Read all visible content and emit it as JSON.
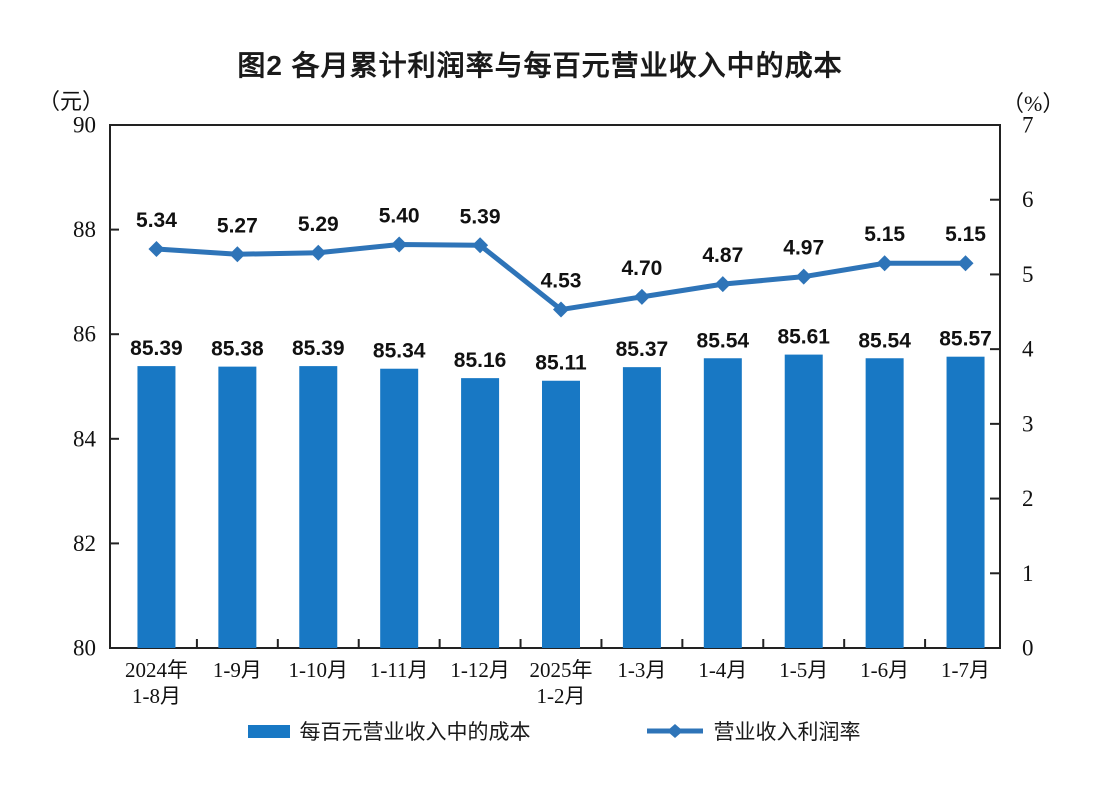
{
  "title": "图2 各月累计利润率与每百元营业收入中的成本",
  "left_axis": {
    "unit": "（元）",
    "ticks": [
      90,
      88,
      86,
      84,
      82,
      80
    ]
  },
  "right_axis": {
    "unit": "（%）",
    "ticks": [
      7,
      6,
      5,
      4,
      3,
      2,
      1,
      0
    ]
  },
  "chart_data": {
    "type": "bar+line combo",
    "title": "图2 各月累计利润率与每百元营业收入中的成本",
    "categories": [
      "2024年\n1-8月",
      "1-9月",
      "1-10月",
      "1-11月",
      "1-12月",
      "2025年\n1-2月",
      "1-3月",
      "1-4月",
      "1-5月",
      "1-6月",
      "1-7月"
    ],
    "series": [
      {
        "name": "每百元营业收入中的成本",
        "type": "bar",
        "axis": "left",
        "unit": "元",
        "values": [
          85.39,
          85.38,
          85.39,
          85.34,
          85.16,
          85.11,
          85.37,
          85.54,
          85.61,
          85.54,
          85.57
        ],
        "color": "#1878C4"
      },
      {
        "name": "营业收入利润率",
        "type": "line",
        "axis": "right",
        "unit": "%",
        "values": [
          5.34,
          5.27,
          5.29,
          5.4,
          5.39,
          4.53,
          4.7,
          4.87,
          4.97,
          5.15,
          5.15
        ],
        "color": "#2E74B8"
      }
    ],
    "left_ylim": [
      80,
      90
    ],
    "right_ylim": [
      0,
      7
    ],
    "grid": false,
    "legend_position": "bottom"
  },
  "legend": {
    "bar_label": "每百元营业收入中的成本",
    "line_label": "营业收入利润率"
  },
  "colors": {
    "bar": "#1878C4",
    "line": "#2E74B8",
    "text": "#111111",
    "background": "#ffffff"
  }
}
